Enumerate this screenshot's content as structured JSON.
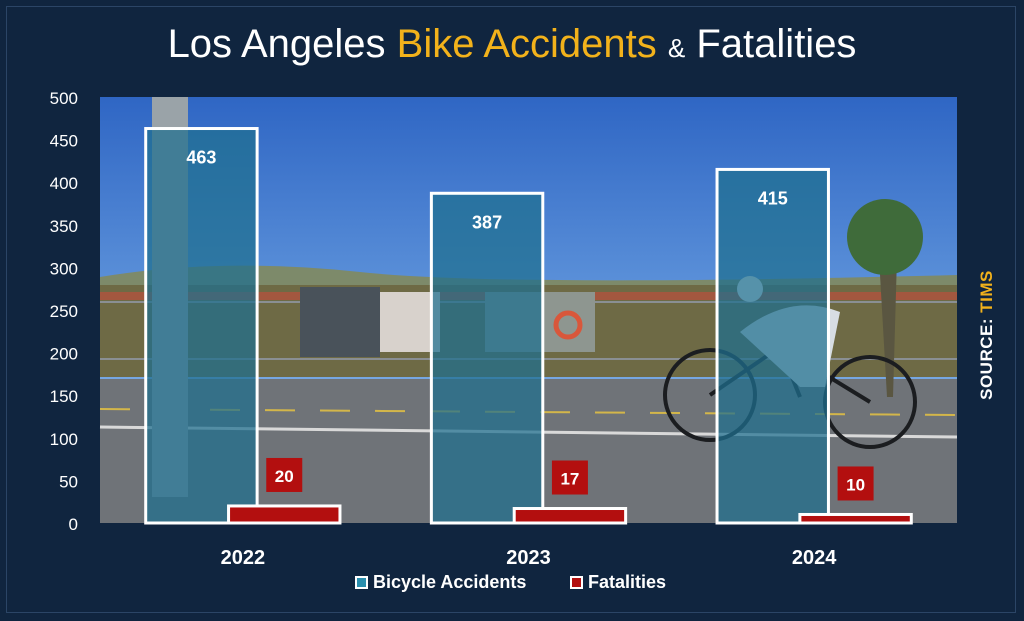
{
  "title": {
    "part1": "Los Angeles",
    "part2": "Bike Accidents",
    "part3": "&",
    "part4": "Fatalities"
  },
  "source": {
    "label": "SOURCE:",
    "value": "TIMS"
  },
  "colors": {
    "background": "#10253f",
    "accidents": "#1f6f8f",
    "fatalities": "#b30f0f",
    "highlight": "#f2b21b"
  },
  "chart_data": {
    "type": "bar",
    "categories": [
      "2022",
      "2023",
      "2024"
    ],
    "series": [
      {
        "name": "Bicycle Accidents",
        "values": [
          463,
          387,
          415
        ]
      },
      {
        "name": "Fatalities",
        "values": [
          20,
          17,
          10
        ]
      }
    ],
    "ylim": [
      0,
      500
    ],
    "yticks": [
      "0",
      "50",
      "100",
      "150",
      "200",
      "250",
      "300",
      "350",
      "400",
      "450",
      "500"
    ],
    "grid": false,
    "legend": "bottom",
    "background": "photo of a bike path with a cyclist"
  },
  "legend": [
    {
      "label": "Bicycle Accidents"
    },
    {
      "label": "Fatalities"
    }
  ]
}
